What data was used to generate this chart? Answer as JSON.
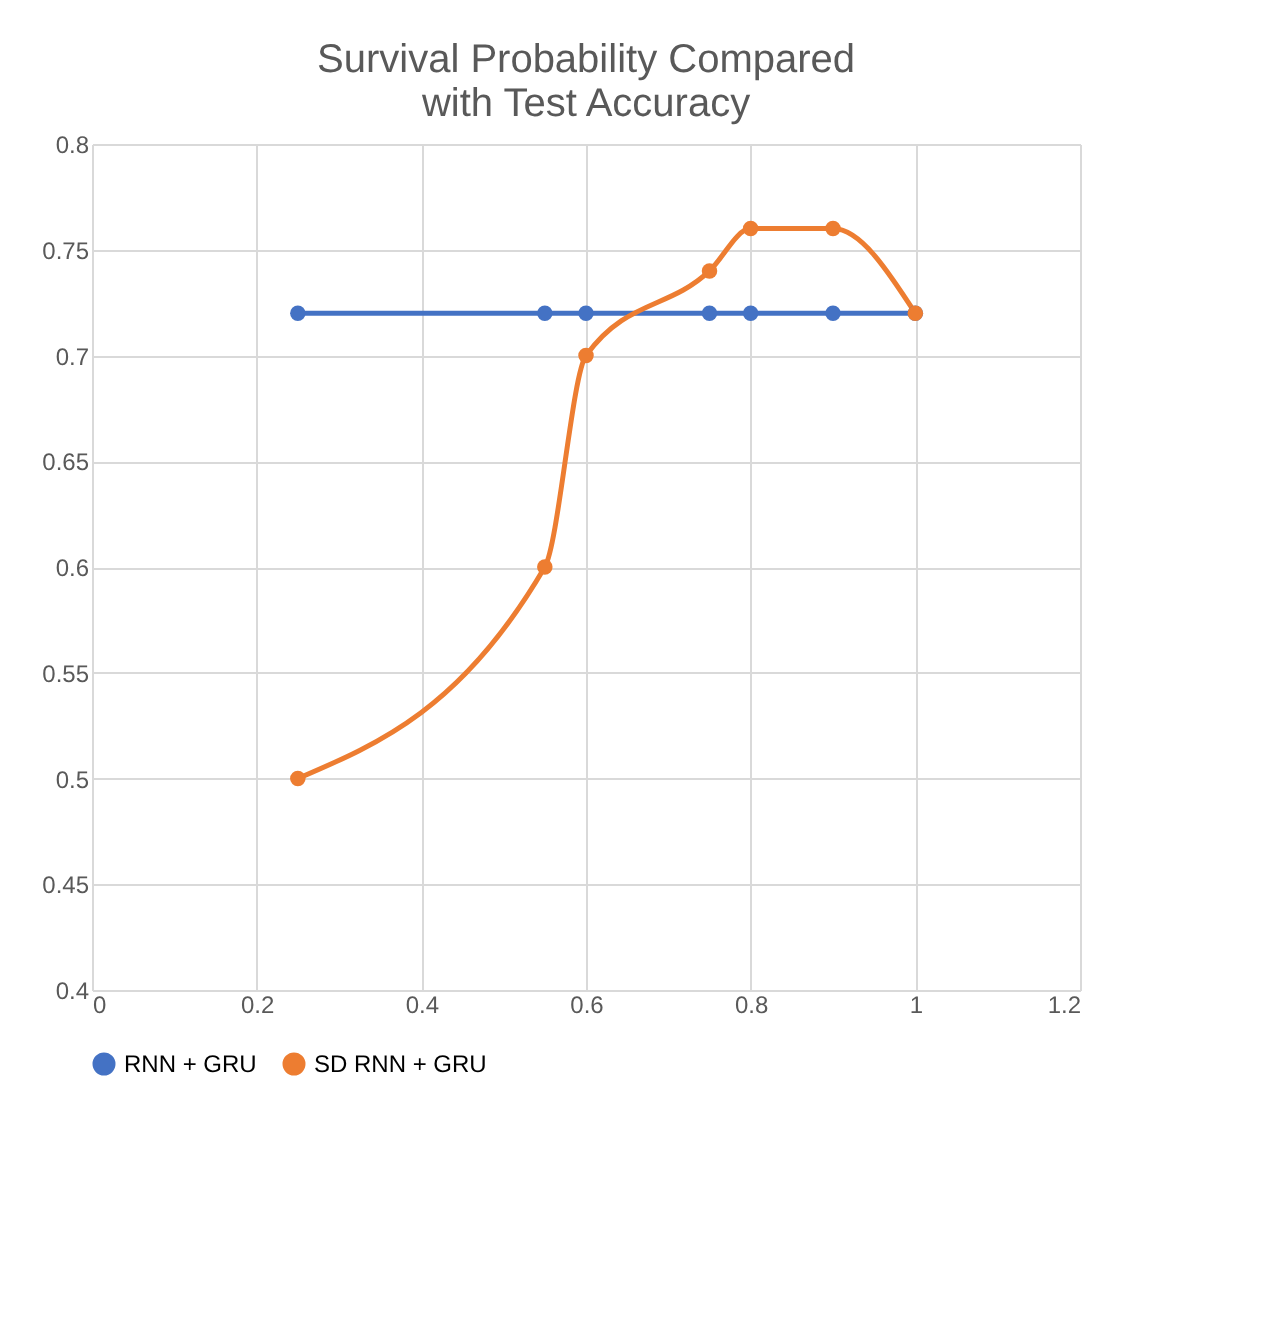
{
  "chart_data": {
    "type": "line",
    "title": "Survival Probability Compared with Test Accuracy",
    "x": [
      0.25,
      0.55,
      0.6,
      0.75,
      0.8,
      0.9,
      1.0
    ],
    "series": [
      {
        "name": "RNN + GRU",
        "color": "#4472c4",
        "values": [
          0.72,
          0.72,
          0.72,
          0.72,
          0.72,
          0.72,
          0.72
        ]
      },
      {
        "name": "SD RNN + GRU",
        "color": "#ed7d31",
        "values": [
          0.5,
          0.6,
          0.7,
          0.74,
          0.76,
          0.76,
          0.72
        ]
      }
    ],
    "xlim": [
      0,
      1.2
    ],
    "xticks": [
      0,
      0.2,
      0.4,
      0.6,
      0.8,
      1,
      1.2
    ],
    "ylim": [
      0.4,
      0.8
    ],
    "yticks": [
      0.4,
      0.45,
      0.5,
      0.55,
      0.6,
      0.65,
      0.7,
      0.75,
      0.8
    ],
    "grid": true,
    "legend": "bottom",
    "marker": "circle",
    "line_style": "solid"
  }
}
